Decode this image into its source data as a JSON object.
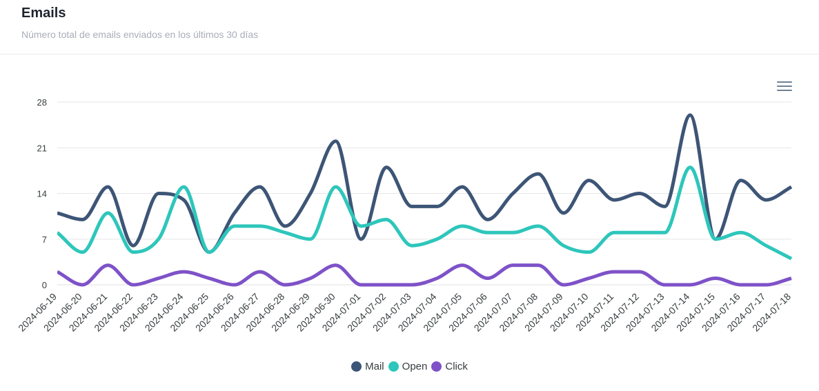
{
  "header": {
    "title": "Emails",
    "subtitle": "Número total de emails enviados en los últimos 30 días"
  },
  "toolbar": {
    "menu_icon": "hamburger-menu-icon"
  },
  "colors": {
    "Mail": "#3d5576",
    "Open": "#2ec6bb",
    "Click": "#7e52c8",
    "grid": "#e6e6e6"
  },
  "chart_data": {
    "type": "line",
    "title": "",
    "xlabel": "",
    "ylabel": "",
    "ylim": [
      0,
      28
    ],
    "yticks": [
      0,
      7,
      14,
      21,
      28
    ],
    "grid": true,
    "legend_position": "bottom",
    "categories": [
      "2024-06-19",
      "2024-06-20",
      "2024-06-21",
      "2024-06-22",
      "2024-06-23",
      "2024-06-24",
      "2024-06-25",
      "2024-06-26",
      "2024-06-27",
      "2024-06-28",
      "2024-06-29",
      "2024-06-30",
      "2024-07-01",
      "2024-07-02",
      "2024-07-03",
      "2024-07-04",
      "2024-07-05",
      "2024-07-06",
      "2024-07-07",
      "2024-07-08",
      "2024-07-09",
      "2024-07-10",
      "2024-07-11",
      "2024-07-12",
      "2024-07-13",
      "2024-07-14",
      "2024-07-15",
      "2024-07-16",
      "2024-07-17",
      "2024-07-18"
    ],
    "series": [
      {
        "name": "Mail",
        "values": [
          11,
          10,
          15,
          6,
          14,
          13,
          5,
          11,
          15,
          9,
          14,
          22,
          7,
          18,
          12,
          12,
          15,
          10,
          14,
          17,
          11,
          16,
          13,
          14,
          12,
          26,
          7,
          16,
          13,
          15
        ]
      },
      {
        "name": "Open",
        "values": [
          8,
          5,
          11,
          5,
          7,
          15,
          5,
          9,
          9,
          8,
          7,
          15,
          9,
          10,
          6,
          7,
          9,
          8,
          8,
          9,
          6,
          5,
          8,
          8,
          8,
          18,
          7,
          8,
          6,
          4
        ]
      },
      {
        "name": "Click",
        "values": [
          2,
          0,
          3,
          0,
          1,
          2,
          1,
          0,
          2,
          0,
          1,
          3,
          0,
          0,
          0,
          1,
          3,
          1,
          3,
          3,
          0,
          1,
          2,
          2,
          0,
          0,
          1,
          0,
          0,
          1
        ]
      }
    ]
  }
}
